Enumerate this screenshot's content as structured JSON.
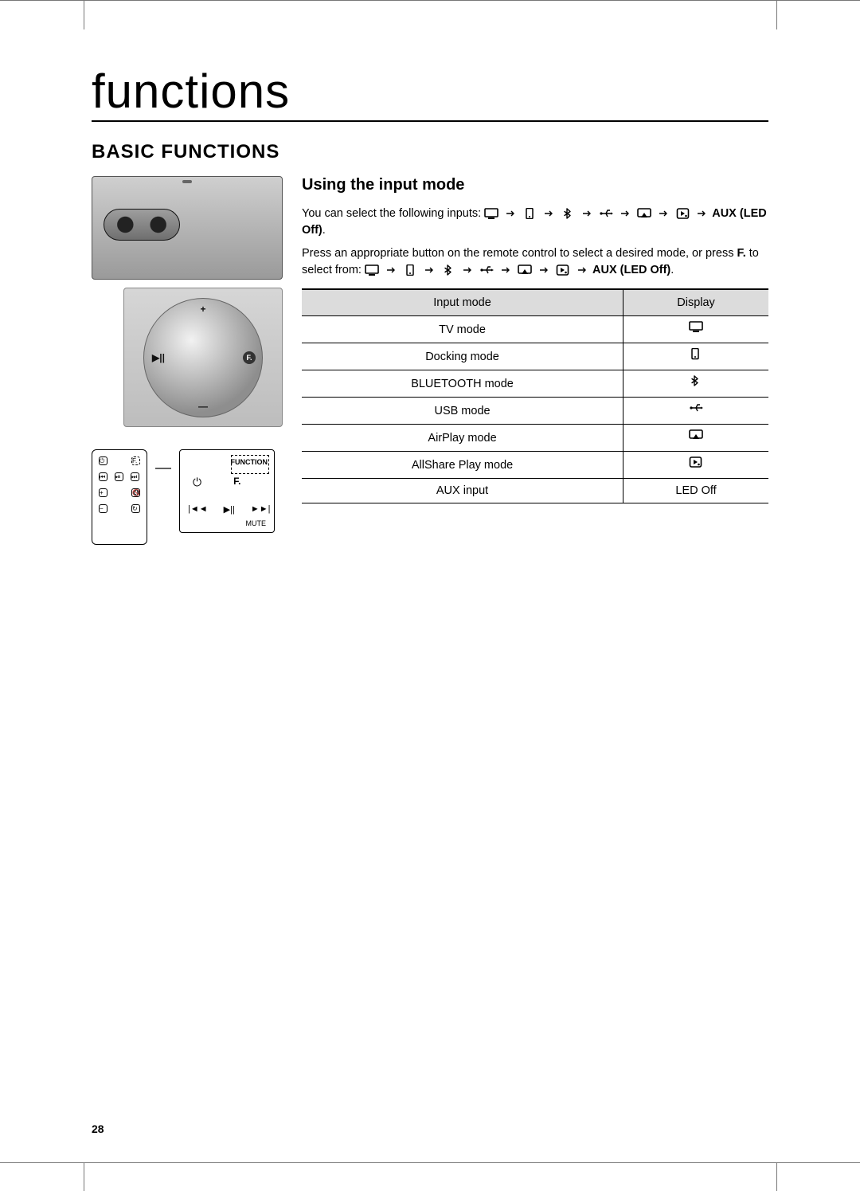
{
  "chapter_title": "functions",
  "section_title": "BASIC FUNCTIONS",
  "subsection_title": "Using the input mode",
  "intro_text": "You can select the following inputs:",
  "aux_label": "AUX (LED Off)",
  "aux_suffix": ".",
  "press_text_1": "Press an appropriate button on the remote control to select a desired mode, or press ",
  "f_label": "F.",
  "press_text_2": " to select from:",
  "aux_label_2": "AUX (LED Off)",
  "aux_suffix_2": ".",
  "table": {
    "header_mode": "Input mode",
    "header_display": "Display",
    "rows": [
      {
        "mode": "TV mode",
        "icon": "tv"
      },
      {
        "mode": "Docking mode",
        "icon": "dock"
      },
      {
        "mode": "BLUETOOTH mode",
        "icon": "bluetooth"
      },
      {
        "mode": "USB mode",
        "icon": "usb"
      },
      {
        "mode": "AirPlay mode",
        "icon": "airplay"
      },
      {
        "mode": "AllShare Play mode",
        "icon": "allshare"
      },
      {
        "mode": "AUX input",
        "text": "LED Off"
      }
    ]
  },
  "dial": {
    "top": "+",
    "bottom": "—",
    "left": "▶||",
    "right": "F."
  },
  "remote_lg": {
    "function": "FUNCTION",
    "f": "F.",
    "mute": "MUTE"
  },
  "page_number": "28"
}
